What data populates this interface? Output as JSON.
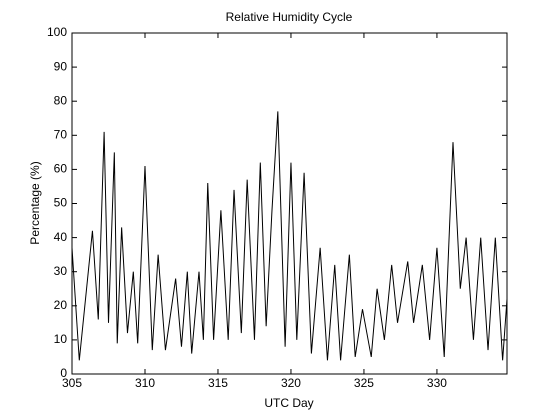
{
  "chart_data": {
    "type": "line",
    "title": "Relative Humidity Cycle",
    "x_label": "UTC Day",
    "y_label": "Percentage (%)",
    "x": [
      305,
      305.5,
      306.4,
      306.8,
      307.2,
      307.5,
      307.9,
      308.1,
      308.4,
      308.8,
      309.2,
      309.5,
      310,
      310.5,
      310.9,
      311.4,
      312.1,
      312.5,
      312.9,
      313.2,
      313.7,
      314,
      314.3,
      314.7,
      315.2,
      315.7,
      316.1,
      316.6,
      317,
      317.5,
      317.9,
      318.3,
      318.7,
      319.1,
      319.6,
      320,
      320.4,
      320.9,
      321.4,
      322,
      322.5,
      323,
      323.4,
      324,
      324.4,
      324.9,
      325.5,
      325.9,
      326.4,
      326.9,
      327.3,
      328,
      328.4,
      329,
      329.5,
      330,
      330.5,
      331.1,
      331.6,
      332,
      332.5,
      333,
      333.5,
      334,
      334.5,
      334.8
    ],
    "series": [
      {
        "color": "#000000",
        "values": [
          37,
          4,
          42,
          16,
          71,
          15,
          65,
          9,
          43,
          12,
          30,
          9,
          61,
          7,
          35,
          7,
          28,
          8,
          30,
          6,
          30,
          10,
          56,
          10,
          48,
          10,
          54,
          12,
          57,
          10,
          62,
          14,
          48,
          77,
          8,
          62,
          10,
          59,
          6,
          37,
          4,
          32,
          4,
          35,
          5,
          19,
          5,
          25,
          10,
          32,
          15,
          33,
          15,
          32,
          10,
          37,
          5,
          68,
          25,
          40,
          10,
          40,
          7,
          40,
          4,
          22
        ]
      }
    ],
    "xlim": [
      305,
      334.8
    ],
    "ylim": [
      0,
      100
    ],
    "xticks": [
      305,
      310,
      315,
      320,
      325,
      330
    ],
    "yticks": [
      0,
      10,
      20,
      30,
      40,
      50,
      60,
      70,
      80,
      90,
      100
    ],
    "grid": false
  }
}
